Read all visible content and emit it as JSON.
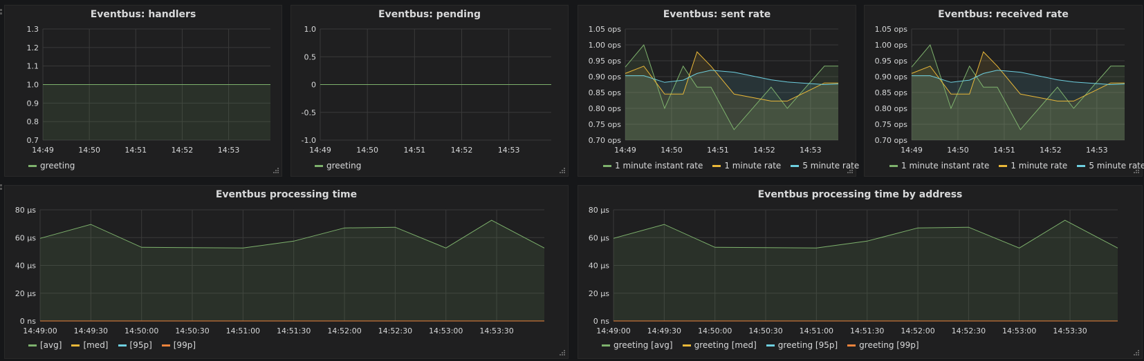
{
  "colors": {
    "green": "#7eb26d",
    "yellow": "#eab839",
    "cyan": "#6ed0e0",
    "orange": "#ef843c",
    "grid": "#3a3a3a",
    "text": "#d8d9da"
  },
  "panels": {
    "handlers": {
      "title": "Eventbus: handlers",
      "legend": [
        "greeting"
      ]
    },
    "pending": {
      "title": "Eventbus: pending",
      "legend": [
        "greeting"
      ]
    },
    "sent": {
      "title": "Eventbus: sent rate",
      "legend": [
        "1 minute instant rate",
        "1 minute rate",
        "5 minute rate"
      ]
    },
    "received": {
      "title": "Eventbus: received rate",
      "legend": [
        "1 minute instant rate",
        "1 minute rate",
        "5 minute rate"
      ]
    },
    "processing": {
      "title": "Eventbus processing time",
      "legend": [
        "[avg]",
        "[med]",
        "[95p]",
        "[99p]"
      ]
    },
    "processing_addr": {
      "title": "Eventbus processing time by address",
      "legend": [
        "greeting [avg]",
        "greeting [med]",
        "greeting [95p]",
        "greeting [99p]"
      ]
    }
  },
  "chart_data": [
    {
      "id": "handlers",
      "type": "area",
      "title": "Eventbus: handlers",
      "x_tick_labels": [
        "14:49",
        "14:50",
        "14:51",
        "14:52",
        "14:53"
      ],
      "x_tick_minutes": [
        0,
        1,
        2,
        3,
        4
      ],
      "xlim_minutes": [
        0,
        4.9
      ],
      "ylim": [
        0.7,
        1.3
      ],
      "y_ticks": [
        0.7,
        0.8,
        0.9,
        1.0,
        1.1,
        1.2,
        1.3
      ],
      "y_tick_labels": [
        "0.7",
        "0.8",
        "0.9",
        "1.0",
        "1.1",
        "1.2",
        "1.3"
      ],
      "grid": true,
      "legend_position": "bottom-left",
      "series": [
        {
          "name": "greeting",
          "color": "#7eb26d",
          "fill": true,
          "x_minutes": [
            0,
            4.9
          ],
          "values": [
            1.0,
            1.0
          ]
        }
      ]
    },
    {
      "id": "pending",
      "type": "line",
      "title": "Eventbus: pending",
      "x_tick_labels": [
        "14:49",
        "14:50",
        "14:51",
        "14:52",
        "14:53"
      ],
      "x_tick_minutes": [
        0,
        1,
        2,
        3,
        4
      ],
      "xlim_minutes": [
        0,
        4.9
      ],
      "ylim": [
        -1.0,
        1.0
      ],
      "y_ticks": [
        -1.0,
        -0.5,
        0,
        0.5,
        1.0
      ],
      "y_tick_labels": [
        "-1.0",
        "-0.5",
        "0",
        "0.5",
        "1.0"
      ],
      "grid": true,
      "legend_position": "bottom-left",
      "series": [
        {
          "name": "greeting",
          "color": "#7eb26d",
          "fill": false,
          "x_minutes": [
            0,
            4.9
          ],
          "values": [
            0,
            0
          ]
        }
      ]
    },
    {
      "id": "sent",
      "type": "area",
      "title": "Eventbus: sent rate",
      "x_tick_labels": [
        "14:49",
        "14:50",
        "14:51",
        "14:52",
        "14:53"
      ],
      "x_tick_minutes": [
        0,
        1,
        2,
        3,
        4
      ],
      "xlim_minutes": [
        0,
        4.6
      ],
      "ylim": [
        0.7,
        1.05
      ],
      "y_ticks": [
        0.7,
        0.75,
        0.8,
        0.85,
        0.9,
        0.95,
        1.0,
        1.05
      ],
      "y_tick_labels": [
        "0.70 ops",
        "0.75 ops",
        "0.80 ops",
        "0.85 ops",
        "0.90 ops",
        "0.95 ops",
        "1.00 ops",
        "1.05 ops"
      ],
      "grid": true,
      "legend_position": "bottom",
      "series": [
        {
          "name": "1 minute instant rate",
          "color": "#7eb26d",
          "fill": true,
          "x_minutes": [
            0,
            0.4,
            0.85,
            1.25,
            1.55,
            1.85,
            2.35,
            3.15,
            3.5,
            4.3,
            4.6
          ],
          "values": [
            0.93,
            1.0,
            0.8,
            0.933,
            0.867,
            0.867,
            0.733,
            0.867,
            0.8,
            0.933,
            0.933
          ]
        },
        {
          "name": "1 minute rate",
          "color": "#eab839",
          "fill": true,
          "x_minutes": [
            0,
            0.4,
            0.85,
            1.25,
            1.55,
            1.85,
            2.35,
            3.15,
            3.5,
            4.3,
            4.6
          ],
          "values": [
            0.91,
            0.933,
            0.845,
            0.845,
            0.978,
            0.933,
            0.845,
            0.823,
            0.823,
            0.88,
            0.88
          ]
        },
        {
          "name": "5 minute rate",
          "color": "#6ed0e0",
          "fill": true,
          "x_minutes": [
            0,
            0.4,
            0.85,
            1.25,
            1.55,
            1.85,
            2.35,
            3.15,
            3.5,
            4.3,
            4.6
          ],
          "values": [
            0.903,
            0.903,
            0.882,
            0.889,
            0.91,
            0.92,
            0.914,
            0.89,
            0.883,
            0.875,
            0.877
          ]
        }
      ]
    },
    {
      "id": "received",
      "type": "area",
      "title": "Eventbus: received rate",
      "x_tick_labels": [
        "14:49",
        "14:50",
        "14:51",
        "14:52",
        "14:53"
      ],
      "x_tick_minutes": [
        0,
        1,
        2,
        3,
        4
      ],
      "xlim_minutes": [
        0,
        4.6
      ],
      "ylim": [
        0.7,
        1.05
      ],
      "y_ticks": [
        0.7,
        0.75,
        0.8,
        0.85,
        0.9,
        0.95,
        1.0,
        1.05
      ],
      "y_tick_labels": [
        "0.70 ops",
        "0.75 ops",
        "0.80 ops",
        "0.85 ops",
        "0.90 ops",
        "0.95 ops",
        "1.00 ops",
        "1.05 ops"
      ],
      "grid": true,
      "legend_position": "bottom",
      "series": [
        {
          "name": "1 minute instant rate",
          "color": "#7eb26d",
          "fill": true,
          "x_minutes": [
            0,
            0.4,
            0.85,
            1.25,
            1.55,
            1.85,
            2.35,
            3.15,
            3.5,
            4.3,
            4.6
          ],
          "values": [
            0.93,
            1.0,
            0.8,
            0.933,
            0.867,
            0.867,
            0.733,
            0.867,
            0.8,
            0.933,
            0.933
          ]
        },
        {
          "name": "1 minute rate",
          "color": "#eab839",
          "fill": true,
          "x_minutes": [
            0,
            0.4,
            0.85,
            1.25,
            1.55,
            1.85,
            2.35,
            3.15,
            3.5,
            4.3,
            4.6
          ],
          "values": [
            0.91,
            0.933,
            0.845,
            0.845,
            0.978,
            0.933,
            0.845,
            0.823,
            0.823,
            0.88,
            0.88
          ]
        },
        {
          "name": "5 minute rate",
          "color": "#6ed0e0",
          "fill": true,
          "x_minutes": [
            0,
            0.4,
            0.85,
            1.25,
            1.55,
            1.85,
            2.35,
            3.15,
            3.5,
            4.3,
            4.6
          ],
          "values": [
            0.903,
            0.903,
            0.882,
            0.889,
            0.91,
            0.92,
            0.914,
            0.89,
            0.883,
            0.875,
            0.877
          ]
        }
      ]
    },
    {
      "id": "processing",
      "type": "area",
      "title": "Eventbus processing time",
      "x_tick_labels": [
        "14:49:00",
        "14:49:30",
        "14:50:00",
        "14:50:30",
        "14:51:00",
        "14:51:30",
        "14:52:00",
        "14:52:30",
        "14:53:00",
        "14:53:30"
      ],
      "x_tick_minutes": [
        0,
        0.5,
        1,
        1.5,
        2,
        2.5,
        3,
        3.5,
        4,
        4.5
      ],
      "xlim_minutes": [
        0,
        4.97
      ],
      "ylim": [
        0,
        80
      ],
      "y_ticks": [
        0,
        20,
        40,
        60,
        80
      ],
      "y_tick_labels": [
        "0 ns",
        "20 µs",
        "40 µs",
        "60 µs",
        "80 µs"
      ],
      "grid": true,
      "legend_position": "bottom-left",
      "series": [
        {
          "name": "[avg]",
          "color": "#7eb26d",
          "fill": true,
          "x_minutes": [
            0,
            0.5,
            1,
            2,
            2.5,
            3,
            3.5,
            4,
            4.45,
            4.97
          ],
          "values": [
            59.5,
            69.5,
            53,
            52.5,
            57.5,
            67,
            67.5,
            52.5,
            72.5,
            52.5
          ]
        },
        {
          "name": "[med]",
          "color": "#eab839",
          "fill": false,
          "x_minutes": [
            0,
            4.97
          ],
          "values": [
            0,
            0
          ]
        },
        {
          "name": "[95p]",
          "color": "#6ed0e0",
          "fill": false,
          "x_minutes": [
            0,
            4.97
          ],
          "values": [
            0,
            0
          ]
        },
        {
          "name": "[99p]",
          "color": "#ef843c",
          "fill": false,
          "x_minutes": [
            0,
            4.97
          ],
          "values": [
            0,
            0
          ]
        }
      ]
    },
    {
      "id": "processing_addr",
      "type": "area",
      "title": "Eventbus processing time by address",
      "x_tick_labels": [
        "14:49:00",
        "14:49:30",
        "14:50:00",
        "14:50:30",
        "14:51:00",
        "14:51:30",
        "14:52:00",
        "14:52:30",
        "14:53:00",
        "14:53:30"
      ],
      "x_tick_minutes": [
        0,
        0.5,
        1,
        1.5,
        2,
        2.5,
        3,
        3.5,
        4,
        4.5
      ],
      "xlim_minutes": [
        0,
        4.97
      ],
      "ylim": [
        0,
        80
      ],
      "y_ticks": [
        0,
        20,
        40,
        60,
        80
      ],
      "y_tick_labels": [
        "0 ns",
        "20 µs",
        "40 µs",
        "60 µs",
        "80 µs"
      ],
      "grid": true,
      "legend_position": "bottom-left",
      "series": [
        {
          "name": "greeting [avg]",
          "color": "#7eb26d",
          "fill": true,
          "x_minutes": [
            0,
            0.5,
            1,
            2,
            2.5,
            3,
            3.5,
            4,
            4.45,
            4.97
          ],
          "values": [
            59.5,
            69.5,
            53,
            52.5,
            57.5,
            67,
            67.5,
            52.5,
            72.5,
            52.5
          ]
        },
        {
          "name": "greeting [med]",
          "color": "#eab839",
          "fill": false,
          "x_minutes": [
            0,
            4.97
          ],
          "values": [
            0,
            0
          ]
        },
        {
          "name": "greeting [95p]",
          "color": "#6ed0e0",
          "fill": false,
          "x_minutes": [
            0,
            4.97
          ],
          "values": [
            0,
            0
          ]
        },
        {
          "name": "greeting [99p]",
          "color": "#ef843c",
          "fill": false,
          "x_minutes": [
            0,
            4.97
          ],
          "values": [
            0,
            0
          ]
        }
      ]
    }
  ]
}
